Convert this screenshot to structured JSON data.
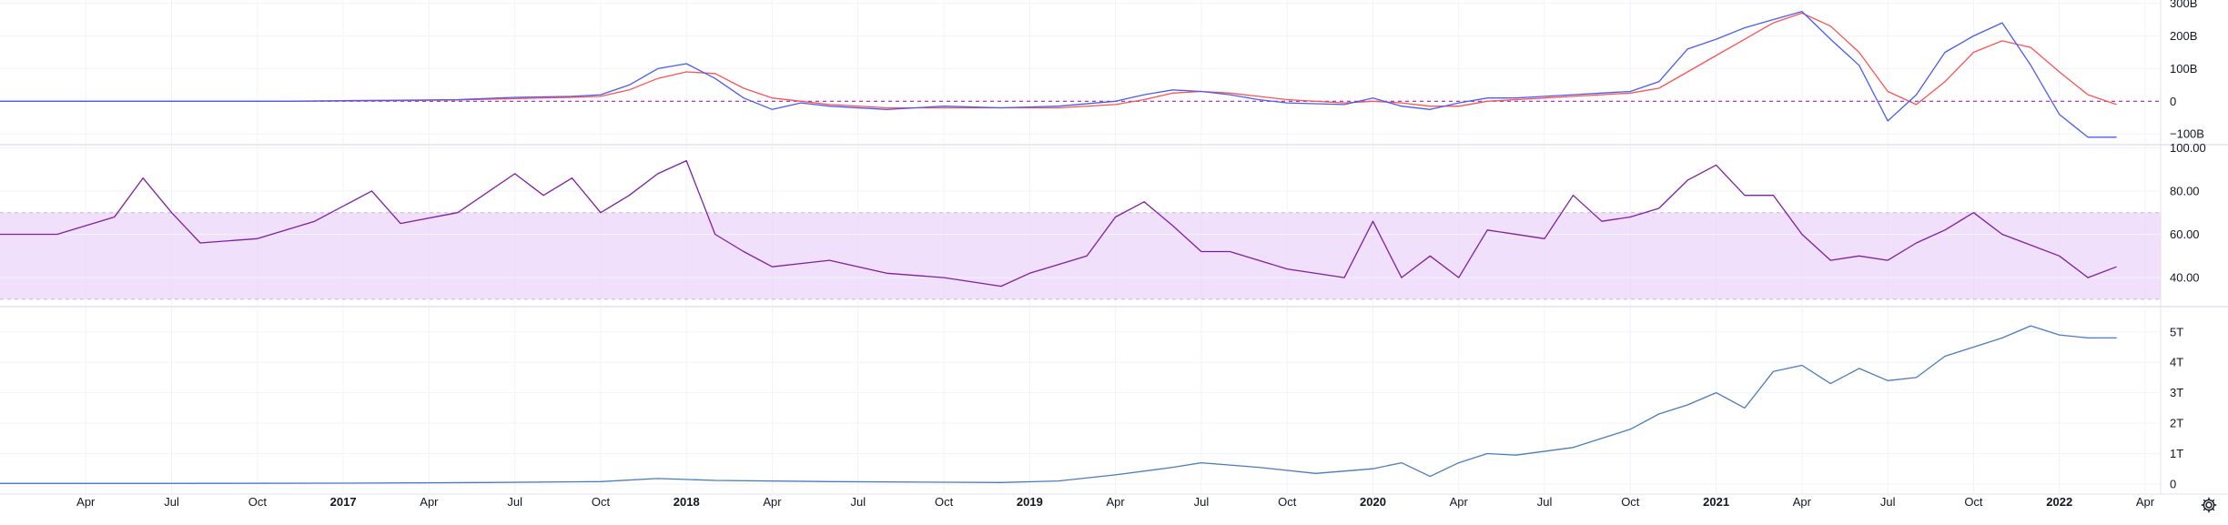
{
  "colors": {
    "background": "#ffffff",
    "grid": "#f0f3fa",
    "separator": "#e0e3eb",
    "axis_text": "#131722",
    "macd_line": "#4a5cf5",
    "signal_line": "#ff5252",
    "zero_line": "#9c27b0",
    "rsi_line": "#7e1fa2",
    "rsi_band": "#ead3fa",
    "rsi_band_border": "#c7b6d6",
    "value_line": "#4a7bbf"
  },
  "icons": {
    "settings": "gear-icon"
  },
  "chart_data": [
    {
      "type": "line",
      "name": "macd-panel",
      "x": [
        "2016-01",
        "2016-03",
        "2016-05",
        "2016-07",
        "2016-09",
        "2016-11",
        "2017-01",
        "2017-03",
        "2017-05",
        "2017-07",
        "2017-09",
        "2017-10",
        "2017-11",
        "2017-12",
        "2018-01",
        "2018-02",
        "2018-03",
        "2018-04",
        "2018-05",
        "2018-06",
        "2018-08",
        "2018-10",
        "2018-12",
        "2019-02",
        "2019-04",
        "2019-05",
        "2019-06",
        "2019-07",
        "2019-08",
        "2019-09",
        "2019-10",
        "2019-12",
        "2020-01",
        "2020-02",
        "2020-03",
        "2020-04",
        "2020-05",
        "2020-06",
        "2020-07",
        "2020-08",
        "2020-09",
        "2020-10",
        "2020-11",
        "2020-12",
        "2021-01",
        "2021-02",
        "2021-03",
        "2021-04",
        "2021-05",
        "2021-06",
        "2021-07",
        "2021-08",
        "2021-09",
        "2021-10",
        "2021-11",
        "2021-12",
        "2022-01",
        "2022-02",
        "2022-03"
      ],
      "series": [
        {
          "values": [
            0,
            0,
            0,
            0,
            0,
            0,
            2,
            3,
            5,
            12,
            15,
            20,
            50,
            100,
            115,
            70,
            10,
            -25,
            -5,
            -15,
            -25,
            -15,
            -20,
            -15,
            0,
            20,
            35,
            30,
            20,
            5,
            -5,
            -10,
            10,
            -15,
            -25,
            -5,
            10,
            10,
            15,
            20,
            25,
            30,
            60,
            160,
            190,
            225,
            250,
            275,
            190,
            110,
            -60,
            20,
            150,
            200,
            240,
            110,
            -40,
            -110,
            -110
          ]
        },
        {
          "values": [
            0,
            0,
            0,
            0,
            0,
            0,
            1,
            2,
            4,
            8,
            12,
            15,
            35,
            70,
            90,
            85,
            40,
            10,
            0,
            -10,
            -20,
            -20,
            -20,
            -20,
            -10,
            5,
            25,
            30,
            25,
            15,
            5,
            -5,
            0,
            -5,
            -15,
            -15,
            0,
            5,
            10,
            15,
            20,
            25,
            40,
            90,
            140,
            190,
            240,
            270,
            230,
            150,
            30,
            -10,
            60,
            150,
            185,
            165,
            90,
            20,
            -10
          ]
        }
      ],
      "yticks": [
        "300B",
        "200B",
        "100B",
        "0",
        "−100B"
      ],
      "ylim": [
        -130,
        310
      ]
    },
    {
      "type": "line",
      "name": "rsi-panel",
      "x": [
        "2016-01",
        "2016-03",
        "2016-05",
        "2016-06",
        "2016-07",
        "2016-08",
        "2016-10",
        "2016-12",
        "2017-02",
        "2017-03",
        "2017-05",
        "2017-07",
        "2017-08",
        "2017-09",
        "2017-10",
        "2017-11",
        "2017-12",
        "2018-01",
        "2018-02",
        "2018-03",
        "2018-04",
        "2018-06",
        "2018-08",
        "2018-10",
        "2018-12",
        "2019-01",
        "2019-03",
        "2019-04",
        "2019-05",
        "2019-06",
        "2019-07",
        "2019-08",
        "2019-10",
        "2019-12",
        "2020-01",
        "2020-02",
        "2020-03",
        "2020-04",
        "2020-05",
        "2020-07",
        "2020-08",
        "2020-09",
        "2020-10",
        "2020-11",
        "2020-12",
        "2021-01",
        "2021-02",
        "2021-03",
        "2021-04",
        "2021-05",
        "2021-06",
        "2021-07",
        "2021-08",
        "2021-09",
        "2021-10",
        "2021-11",
        "2021-12",
        "2022-01",
        "2022-02",
        "2022-03"
      ],
      "values": [
        60,
        60,
        68,
        86,
        70,
        56,
        58,
        66,
        80,
        65,
        70,
        88,
        78,
        86,
        70,
        78,
        88,
        94,
        60,
        52,
        45,
        48,
        42,
        40,
        36,
        42,
        50,
        68,
        75,
        64,
        52,
        52,
        44,
        40,
        66,
        40,
        50,
        40,
        62,
        58,
        78,
        66,
        68,
        72,
        85,
        92,
        78,
        78,
        60,
        48,
        50,
        48,
        56,
        62,
        70,
        60,
        55,
        50,
        40,
        45
      ],
      "upper_band": 70,
      "lower_band": 30,
      "yticks": [
        "100.00",
        "80.00",
        "60.00",
        "40.00"
      ],
      "ylim": [
        27,
        101
      ]
    },
    {
      "type": "line",
      "name": "value-panel",
      "x": [
        "2016-01",
        "2016-06",
        "2017-01",
        "2017-06",
        "2017-10",
        "2017-12",
        "2018-02",
        "2018-06",
        "2018-10",
        "2018-12",
        "2019-02",
        "2019-04",
        "2019-06",
        "2019-07",
        "2019-09",
        "2019-11",
        "2020-01",
        "2020-02",
        "2020-03",
        "2020-04",
        "2020-05",
        "2020-06",
        "2020-08",
        "2020-09",
        "2020-10",
        "2020-11",
        "2020-12",
        "2021-01",
        "2021-02",
        "2021-03",
        "2021-04",
        "2021-05",
        "2021-06",
        "2021-07",
        "2021-08",
        "2021-09",
        "2021-10",
        "2021-11",
        "2021-12",
        "2022-01",
        "2022-02",
        "2022-03"
      ],
      "values": [
        0.02,
        0.02,
        0.03,
        0.05,
        0.08,
        0.18,
        0.12,
        0.08,
        0.06,
        0.05,
        0.1,
        0.3,
        0.55,
        0.7,
        0.55,
        0.35,
        0.5,
        0.7,
        0.25,
        0.7,
        1.0,
        0.95,
        1.2,
        1.5,
        1.8,
        2.3,
        2.6,
        3.0,
        2.5,
        3.7,
        3.9,
        3.3,
        3.8,
        3.4,
        3.5,
        4.2,
        4.5,
        4.8,
        5.2,
        4.9,
        4.8,
        4.8
      ],
      "yticks": [
        "5T",
        "4T",
        "3T",
        "2T",
        "1T",
        "0"
      ],
      "ylim": [
        -0.3,
        5.8
      ]
    }
  ],
  "x_axis": {
    "ticks": [
      {
        "label": "Apr",
        "t": "2016-04",
        "bold": false
      },
      {
        "label": "Jul",
        "t": "2016-07",
        "bold": false
      },
      {
        "label": "Oct",
        "t": "2016-10",
        "bold": false
      },
      {
        "label": "2017",
        "t": "2017-01",
        "bold": true
      },
      {
        "label": "Apr",
        "t": "2017-04",
        "bold": false
      },
      {
        "label": "Jul",
        "t": "2017-07",
        "bold": false
      },
      {
        "label": "Oct",
        "t": "2017-10",
        "bold": false
      },
      {
        "label": "2018",
        "t": "2018-01",
        "bold": true
      },
      {
        "label": "Apr",
        "t": "2018-04",
        "bold": false
      },
      {
        "label": "Jul",
        "t": "2018-07",
        "bold": false
      },
      {
        "label": "Oct",
        "t": "2018-10",
        "bold": false
      },
      {
        "label": "2019",
        "t": "2019-01",
        "bold": true
      },
      {
        "label": "Apr",
        "t": "2019-04",
        "bold": false
      },
      {
        "label": "Jul",
        "t": "2019-07",
        "bold": false
      },
      {
        "label": "Oct",
        "t": "2019-10",
        "bold": false
      },
      {
        "label": "2020",
        "t": "2020-01",
        "bold": true
      },
      {
        "label": "Apr",
        "t": "2020-04",
        "bold": false
      },
      {
        "label": "Jul",
        "t": "2020-07",
        "bold": false
      },
      {
        "label": "Oct",
        "t": "2020-10",
        "bold": false
      },
      {
        "label": "2021",
        "t": "2021-01",
        "bold": true
      },
      {
        "label": "Apr",
        "t": "2021-04",
        "bold": false
      },
      {
        "label": "Jul",
        "t": "2021-07",
        "bold": false
      },
      {
        "label": "Oct",
        "t": "2021-10",
        "bold": false
      },
      {
        "label": "2022",
        "t": "2022-01",
        "bold": true
      },
      {
        "label": "Apr",
        "t": "2022-04",
        "bold": false
      }
    ]
  }
}
